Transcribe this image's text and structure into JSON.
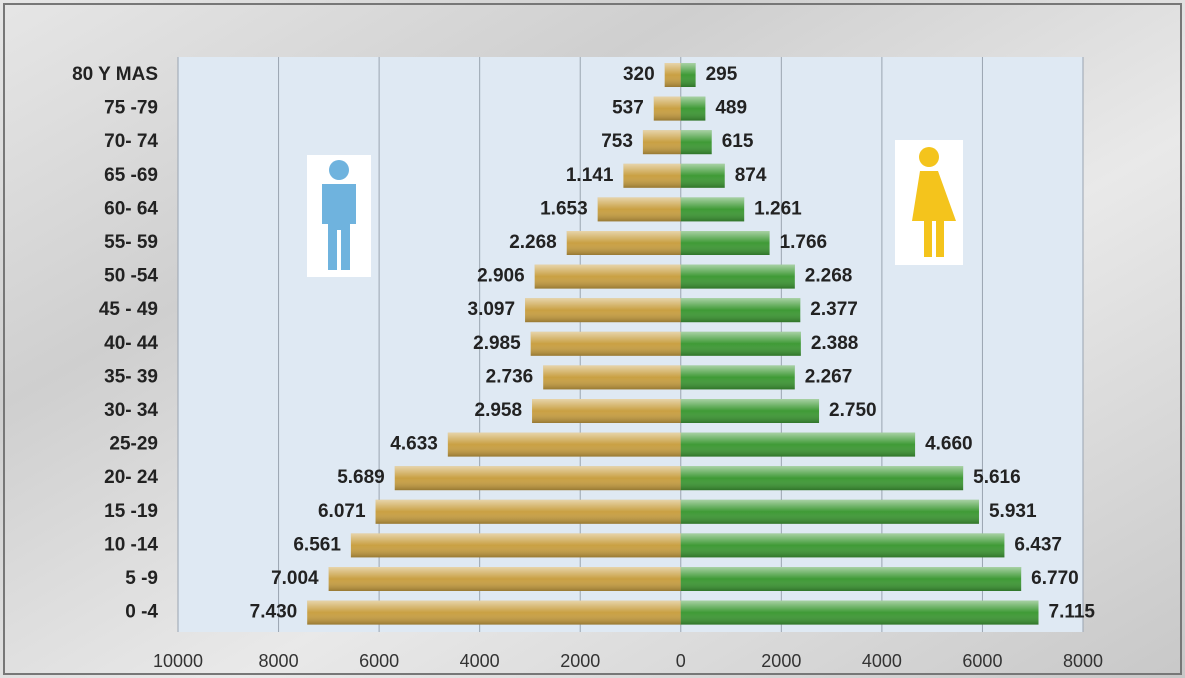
{
  "chart_data": {
    "type": "pyramid",
    "categories": [
      "80 Y MAS",
      "75 -79",
      "70- 74",
      "65 -69",
      "60- 64",
      "55- 59",
      "50 -54",
      "45 - 49",
      "40- 44",
      "35- 39",
      "30- 34",
      "25-29",
      "20- 24",
      "15 -19",
      "10 -14",
      "5 -9",
      "0 -4"
    ],
    "series": [
      {
        "color": "#c9a043",
        "values": [
          320,
          537,
          753,
          1141,
          1653,
          2268,
          2906,
          3097,
          2985,
          2736,
          2958,
          4633,
          5689,
          6071,
          6561,
          7004,
          7430
        ],
        "value_labels": [
          "320",
          "537",
          "753",
          "1.141",
          "1.653",
          "2.268",
          "2.906",
          "3.097",
          "2.985",
          "2.736",
          "2.958",
          "4.633",
          "5.689",
          "6.071",
          "6.561",
          "7.004",
          "7.430"
        ]
      },
      {
        "color": "#3f9a36",
        "values": [
          295,
          489,
          615,
          874,
          1261,
          1766,
          2268,
          2377,
          2388,
          2267,
          2750,
          4660,
          5616,
          5931,
          6437,
          6770,
          7115
        ],
        "value_labels": [
          "295",
          "489",
          "615",
          "874",
          "1.261",
          "1.766",
          "2.268",
          "2.377",
          "2.388",
          "2.267",
          "2.750",
          "4.660",
          "5.616",
          "5.931",
          "6.437",
          "6.770",
          "7.115"
        ]
      }
    ],
    "xlim": [
      -10000,
      8000
    ],
    "xticks": [
      {
        "value": -10000,
        "label": "10000"
      },
      {
        "value": -8000,
        "label": "8000"
      },
      {
        "value": -6000,
        "label": "6000"
      },
      {
        "value": -4000,
        "label": "4000"
      },
      {
        "value": -2000,
        "label": "2000"
      },
      0,
      2000,
      4000,
      6000,
      8000
    ],
    "grid": true
  }
}
